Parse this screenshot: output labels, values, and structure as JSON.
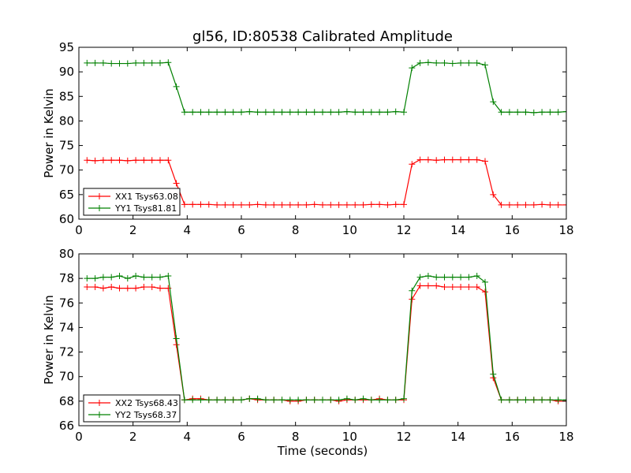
{
  "title": "gl56, ID:80538 Calibrated Amplitude",
  "chart_data": [
    {
      "type": "line",
      "ylabel": "Power in Kelvin",
      "xlabel": "",
      "xlim": [
        0,
        18
      ],
      "ylim": [
        60,
        95
      ],
      "xticks": [
        0,
        2,
        4,
        6,
        8,
        10,
        12,
        14,
        16,
        18
      ],
      "yticks": [
        60,
        65,
        70,
        75,
        80,
        85,
        90,
        95
      ],
      "grid": false,
      "legend_position": "lower-left",
      "x": [
        0.3,
        0.6,
        0.9,
        1.2,
        1.5,
        1.8,
        2.1,
        2.4,
        2.7,
        3.0,
        3.3,
        3.6,
        3.9,
        4.2,
        4.5,
        4.8,
        5.1,
        5.4,
        5.7,
        6.0,
        6.3,
        6.6,
        6.9,
        7.2,
        7.5,
        7.8,
        8.1,
        8.4,
        8.7,
        9.0,
        9.3,
        9.6,
        9.9,
        10.2,
        10.5,
        10.8,
        11.1,
        11.4,
        11.7,
        12.0,
        12.3,
        12.6,
        12.9,
        13.2,
        13.5,
        13.8,
        14.1,
        14.4,
        14.7,
        15.0,
        15.3,
        15.6,
        15.9,
        16.2,
        16.5,
        16.8,
        17.1,
        17.4,
        17.7,
        18.0
      ],
      "series": [
        {
          "name": "XX1 Tsys63.08",
          "color": "#ff0000",
          "values": [
            72.0,
            71.9,
            72.0,
            72.0,
            72.0,
            71.9,
            72.0,
            72.0,
            72.0,
            72.0,
            72.0,
            67.3,
            63.0,
            63.0,
            63.0,
            63.0,
            62.9,
            62.9,
            62.9,
            62.9,
            62.9,
            63.0,
            62.9,
            62.9,
            62.9,
            62.9,
            62.9,
            62.9,
            63.0,
            62.9,
            62.9,
            62.9,
            62.9,
            62.9,
            62.9,
            63.0,
            63.0,
            62.9,
            63.0,
            63.0,
            71.2,
            72.1,
            72.1,
            72.0,
            72.1,
            72.1,
            72.1,
            72.1,
            72.1,
            71.8,
            65.0,
            62.9,
            62.9,
            62.9,
            62.9,
            62.9,
            63.0,
            62.9,
            62.9,
            62.9
          ]
        },
        {
          "name": "YY1 Tsys81.81",
          "color": "#008000",
          "values": [
            91.8,
            91.8,
            91.8,
            91.7,
            91.7,
            91.7,
            91.8,
            91.8,
            91.8,
            91.8,
            91.9,
            87.0,
            81.8,
            81.8,
            81.8,
            81.8,
            81.8,
            81.8,
            81.8,
            81.8,
            81.9,
            81.8,
            81.8,
            81.8,
            81.8,
            81.8,
            81.8,
            81.8,
            81.8,
            81.8,
            81.8,
            81.8,
            81.9,
            81.8,
            81.8,
            81.8,
            81.8,
            81.8,
            81.9,
            81.8,
            90.8,
            91.8,
            91.9,
            91.8,
            91.8,
            91.7,
            91.8,
            91.8,
            91.8,
            91.4,
            83.9,
            81.8,
            81.8,
            81.8,
            81.8,
            81.7,
            81.8,
            81.8,
            81.8,
            81.9
          ]
        }
      ]
    },
    {
      "type": "line",
      "ylabel": "Power in Kelvin",
      "xlabel": "Time (seconds)",
      "xlim": [
        0,
        18
      ],
      "ylim": [
        66,
        80
      ],
      "xticks": [
        0,
        2,
        4,
        6,
        8,
        10,
        12,
        14,
        16,
        18
      ],
      "yticks": [
        66,
        68,
        70,
        72,
        74,
        76,
        78,
        80
      ],
      "grid": false,
      "legend_position": "lower-left",
      "x": [
        0.3,
        0.6,
        0.9,
        1.2,
        1.5,
        1.8,
        2.1,
        2.4,
        2.7,
        3.0,
        3.3,
        3.6,
        3.9,
        4.2,
        4.5,
        4.8,
        5.1,
        5.4,
        5.7,
        6.0,
        6.3,
        6.6,
        6.9,
        7.2,
        7.5,
        7.8,
        8.1,
        8.4,
        8.7,
        9.0,
        9.3,
        9.6,
        9.9,
        10.2,
        10.5,
        10.8,
        11.1,
        11.4,
        11.7,
        12.0,
        12.3,
        12.6,
        12.9,
        13.2,
        13.5,
        13.8,
        14.1,
        14.4,
        14.7,
        15.0,
        15.3,
        15.6,
        15.9,
        16.2,
        16.5,
        16.8,
        17.1,
        17.4,
        17.7,
        18.0
      ],
      "series": [
        {
          "name": "XX2 Tsys68.43",
          "color": "#ff0000",
          "values": [
            77.3,
            77.3,
            77.2,
            77.3,
            77.2,
            77.2,
            77.2,
            77.3,
            77.3,
            77.2,
            77.2,
            72.6,
            68.1,
            68.2,
            68.2,
            68.1,
            68.1,
            68.1,
            68.1,
            68.1,
            68.2,
            68.1,
            68.1,
            68.1,
            68.1,
            68.0,
            68.0,
            68.1,
            68.1,
            68.1,
            68.1,
            68.0,
            68.1,
            68.1,
            68.1,
            68.1,
            68.2,
            68.1,
            68.1,
            68.1,
            76.3,
            77.4,
            77.4,
            77.4,
            77.3,
            77.3,
            77.3,
            77.3,
            77.3,
            76.9,
            69.9,
            68.1,
            68.1,
            68.1,
            68.1,
            68.1,
            68.1,
            68.1,
            68.0,
            68.0
          ]
        },
        {
          "name": "YY2 Tsys68.37",
          "color": "#008000",
          "values": [
            78.0,
            78.0,
            78.1,
            78.1,
            78.2,
            78.0,
            78.2,
            78.1,
            78.1,
            78.1,
            78.2,
            73.1,
            68.1,
            68.1,
            68.1,
            68.1,
            68.1,
            68.1,
            68.1,
            68.1,
            68.2,
            68.2,
            68.1,
            68.1,
            68.1,
            68.1,
            68.1,
            68.1,
            68.1,
            68.1,
            68.1,
            68.1,
            68.2,
            68.1,
            68.2,
            68.1,
            68.1,
            68.1,
            68.1,
            68.2,
            77.0,
            78.1,
            78.2,
            78.1,
            78.1,
            78.1,
            78.1,
            78.1,
            78.2,
            77.7,
            70.2,
            68.1,
            68.1,
            68.1,
            68.1,
            68.1,
            68.1,
            68.1,
            68.1,
            68.1
          ]
        }
      ]
    }
  ]
}
